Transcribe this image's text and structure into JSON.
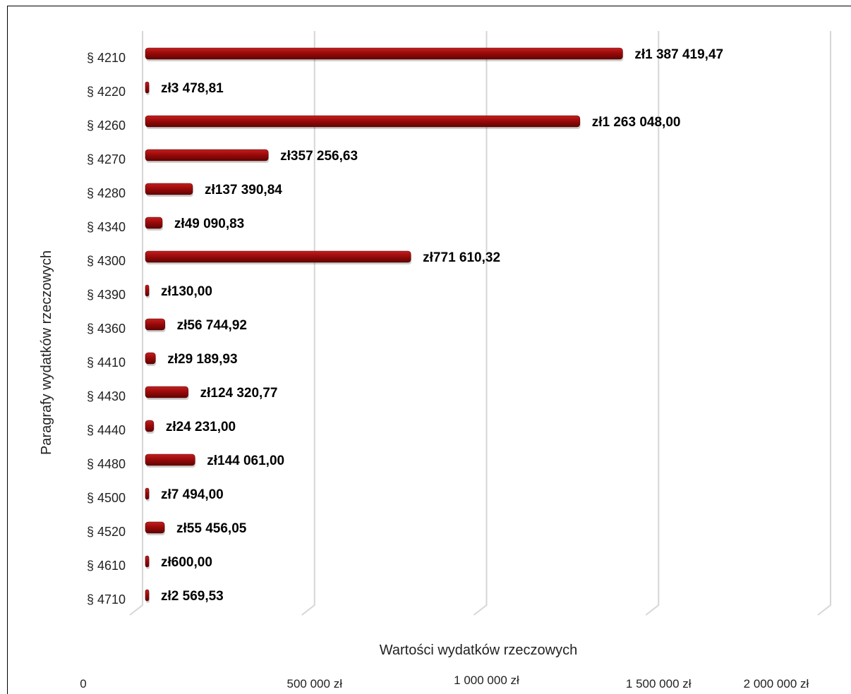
{
  "chart_data": {
    "type": "bar",
    "orientation": "horizontal",
    "categories": [
      "§ 4210",
      "§ 4220",
      "§ 4260",
      "§ 4270",
      "§ 4280",
      "§ 4340",
      "§ 4300",
      "§ 4390",
      "§ 4360",
      "§ 4410",
      "§ 4430",
      "§ 4440",
      "§ 4480",
      "§ 4500",
      "§ 4520",
      "§ 4610",
      "§ 4710"
    ],
    "values": [
      1387419.47,
      3478.81,
      1263048.0,
      357256.63,
      137390.84,
      49090.83,
      771610.32,
      130.0,
      56744.92,
      29189.93,
      124320.77,
      24231.0,
      144061.0,
      7494.0,
      55456.05,
      600.0,
      2569.53
    ],
    "value_labels": [
      "zł1 387 419,47",
      "zł3 478,81",
      "zł1 263 048,00",
      "zł357 256,63",
      "zł137 390,84",
      "zł49 090,83",
      "zł771 610,32",
      "zł130,00",
      "zł56 744,92",
      "zł29 189,93",
      "zł124 320,77",
      "zł24 231,00",
      "zł144 061,00",
      "zł7 494,00",
      "zł55 456,05",
      "zł600,00",
      "zł2 569,53"
    ],
    "title": "",
    "xlabel": "Wartości wydatków rzeczowych",
    "ylabel": "Paragrafy wydatków rzeczowych",
    "xlim": [
      0,
      2000000
    ],
    "xticks": [
      0,
      500000,
      1000000,
      1500000,
      2000000
    ],
    "xtick_labels": [
      "0",
      "500 000 zł",
      "1 000 000 zł",
      "1 500 000 zł",
      "2 000 000 zł"
    ],
    "grid": true,
    "colors": {
      "bar": "#9c0a0a",
      "bar_dark": "#5e0404",
      "grid": "#d6d6d6"
    }
  }
}
